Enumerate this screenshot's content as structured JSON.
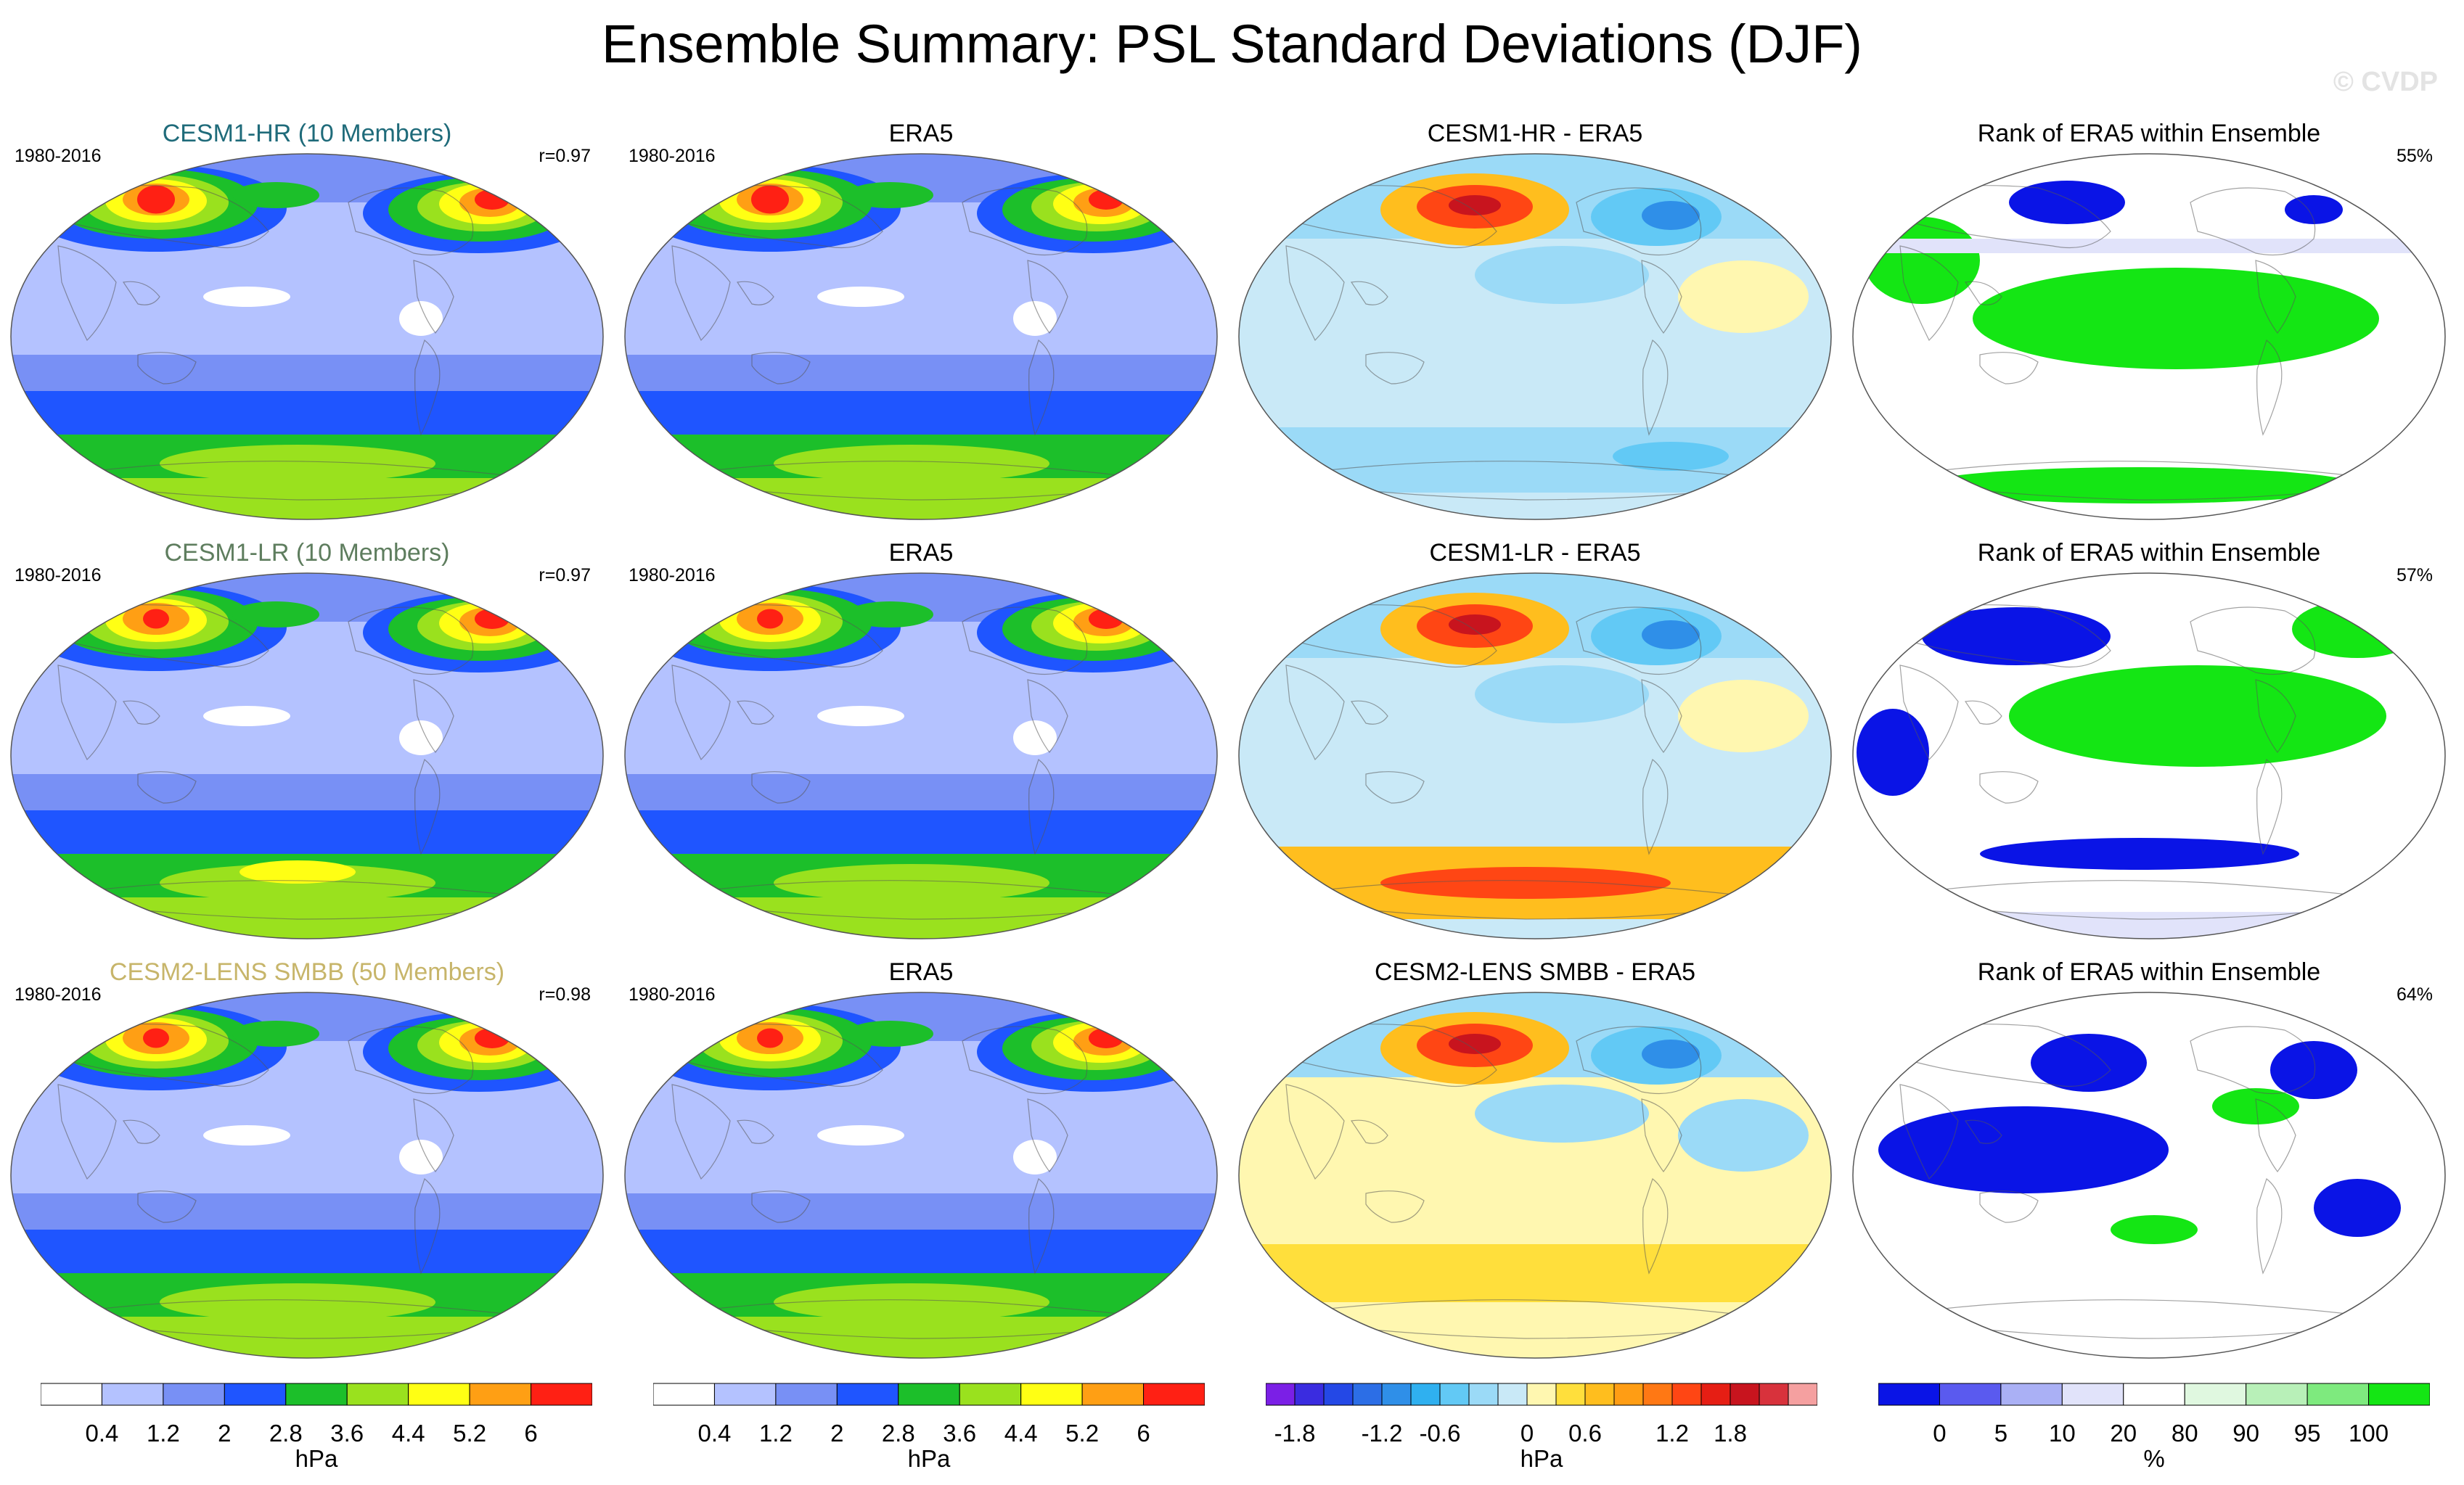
{
  "title": "Ensemble Summary: PSL Standard Deviations (DJF)",
  "watermark": "© CVDP",
  "colors": {
    "title_cesm1_hr": "#1f6b7a",
    "title_cesm1_lr": "#5e7d5e",
    "title_cesm2": "#c7b56a",
    "ocean_low": "#b4c2ff",
    "mid_blue": "#7890f5",
    "deep_blue": "#1f55ff",
    "green": "#1cbf2a",
    "lime": "#9ae11e",
    "yellow": "#ffff14",
    "orange": "#ff9f14",
    "red": "#ff2014",
    "rank_blue": "#0a14e6",
    "rank_green": "#14e614"
  },
  "rows": [
    {
      "model": {
        "title": "CESM1-HR (10 Members)",
        "period": "1980-2016",
        "corr": "r=0.97"
      },
      "obs": {
        "title": "ERA5",
        "period": "1980-2016"
      },
      "diff": {
        "title": "CESM1-HR - ERA5"
      },
      "rank": {
        "title": "Rank of ERA5 within Ensemble",
        "pct": "55%"
      }
    },
    {
      "model": {
        "title": "CESM1-LR (10 Members)",
        "period": "1980-2016",
        "corr": "r=0.97"
      },
      "obs": {
        "title": "ERA5",
        "period": "1980-2016"
      },
      "diff": {
        "title": "CESM1-LR - ERA5"
      },
      "rank": {
        "title": "Rank of ERA5 within Ensemble",
        "pct": "57%"
      }
    },
    {
      "model": {
        "title": "CESM2-LENS SMBB (50 Members)",
        "period": "1980-2016",
        "corr": "r=0.98"
      },
      "obs": {
        "title": "ERA5",
        "period": "1980-2016"
      },
      "diff": {
        "title": "CESM2-LENS SMBB - ERA5"
      },
      "rank": {
        "title": "Rank of ERA5 within Ensemble",
        "pct": "64%"
      }
    }
  ],
  "colorbars": {
    "sd": {
      "labels": [
        "0.4",
        "1.2",
        "2",
        "2.8",
        "3.6",
        "4.4",
        "5.2",
        "6"
      ],
      "units": "hPa",
      "colors": [
        "#ffffff",
        "#b4c2ff",
        "#7890f5",
        "#1f55ff",
        "#1cbf2a",
        "#9ae11e",
        "#ffff14",
        "#ff9f14",
        "#ff2014"
      ]
    },
    "diff": {
      "labels": [
        "-1.8",
        "-1.2",
        "-0.6",
        "0",
        "0.6",
        "1.2",
        "1.8"
      ],
      "units": "hPa",
      "colors": [
        "#7b1fe6",
        "#3a2ce0",
        "#2448e6",
        "#2c6ee6",
        "#2f8fe8",
        "#2fb0f0",
        "#62c9f5",
        "#9bdaf7",
        "#c9e9f7",
        "#fff7b0",
        "#ffdf3c",
        "#ffbe1e",
        "#ff9d14",
        "#ff7814",
        "#ff4614",
        "#e61e14",
        "#c8141e",
        "#d8323c",
        "#f5a0a0"
      ]
    },
    "rank": {
      "labels": [
        "0",
        "5",
        "10",
        "20",
        "80",
        "90",
        "95",
        "100"
      ],
      "units": "%",
      "colors": [
        "#0a14e6",
        "#5a5aef",
        "#aab0f5",
        "#e1e3fa",
        "#ffffff",
        "#e0f8e0",
        "#b8f0b8",
        "#7eea7e",
        "#14e614"
      ]
    }
  },
  "chart_data": [
    {
      "type": "heatmap",
      "title": "Ensemble Summary: PSL Standard Deviations (DJF)",
      "panels": [
        {
          "row": 1,
          "title": "CESM1-HR (10 Members)",
          "period": "1980-2016",
          "pattern_correlation": 0.97,
          "field": "PSL standard deviation",
          "units": "hPa"
        },
        {
          "row": 1,
          "title": "ERA5",
          "period": "1980-2016",
          "field": "PSL standard deviation",
          "units": "hPa"
        },
        {
          "row": 1,
          "title": "CESM1-HR - ERA5",
          "field": "difference",
          "units": "hPa"
        },
        {
          "row": 1,
          "title": "Rank of ERA5 within Ensemble",
          "summary_percent": 55,
          "units": "%"
        },
        {
          "row": 2,
          "title": "CESM1-LR (10 Members)",
          "period": "1980-2016",
          "pattern_correlation": 0.97,
          "field": "PSL standard deviation",
          "units": "hPa"
        },
        {
          "row": 2,
          "title": "ERA5",
          "period": "1980-2016",
          "field": "PSL standard deviation",
          "units": "hPa"
        },
        {
          "row": 2,
          "title": "CESM1-LR - ERA5",
          "field": "difference",
          "units": "hPa"
        },
        {
          "row": 2,
          "title": "Rank of ERA5 within Ensemble",
          "summary_percent": 57,
          "units": "%"
        },
        {
          "row": 3,
          "title": "CESM2-LENS SMBB (50 Members)",
          "period": "1980-2016",
          "pattern_correlation": 0.98,
          "field": "PSL standard deviation",
          "units": "hPa"
        },
        {
          "row": 3,
          "title": "ERA5",
          "period": "1980-2016",
          "field": "PSL standard deviation",
          "units": "hPa"
        },
        {
          "row": 3,
          "title": "CESM2-LENS SMBB - ERA5",
          "field": "difference",
          "units": "hPa"
        },
        {
          "row": 3,
          "title": "Rank of ERA5 within Ensemble",
          "summary_percent": 64,
          "units": "%"
        }
      ],
      "colorbar_sd_levels": [
        0.4,
        1.2,
        2,
        2.8,
        3.6,
        4.4,
        5.2,
        6
      ],
      "colorbar_diff_levels": [
        -1.8,
        -1.2,
        -0.6,
        0,
        0.6,
        1.2,
        1.8
      ],
      "colorbar_rank_levels": [
        0,
        5,
        10,
        20,
        80,
        90,
        95,
        100
      ]
    }
  ]
}
